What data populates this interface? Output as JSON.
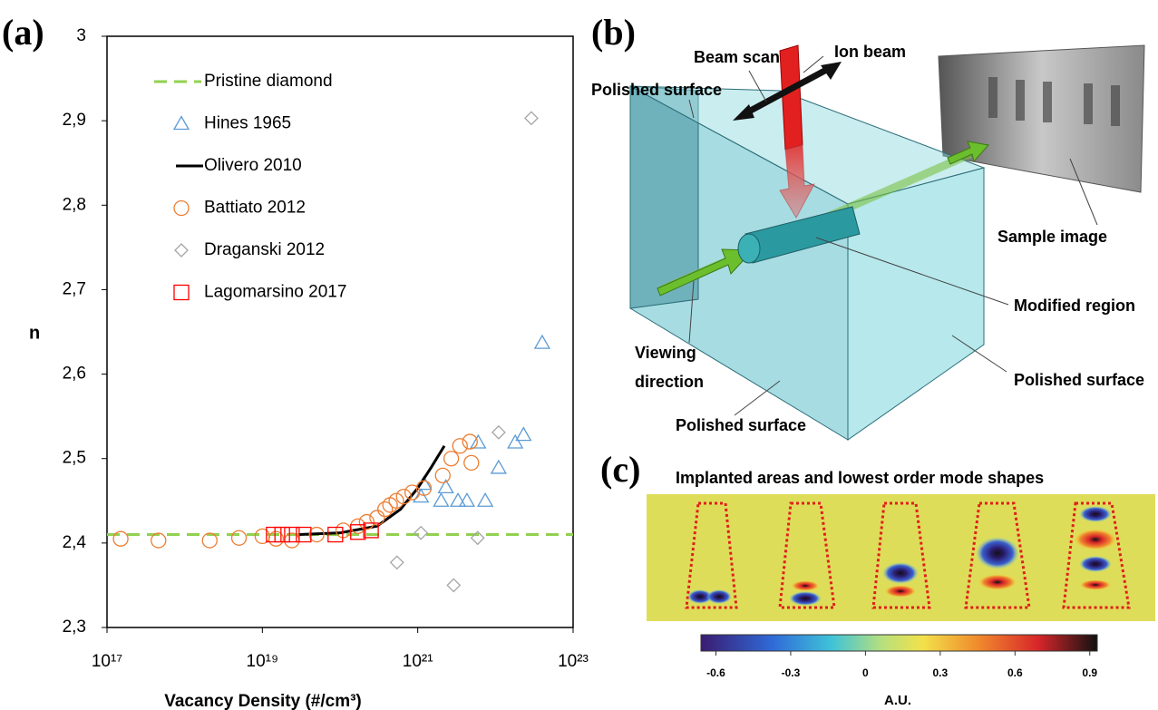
{
  "chart_data": {
    "type": "scatter",
    "panel_label": "(a)",
    "x_label": "Vacancy Density (#/cm³)",
    "y_label": "n",
    "xscale": "log",
    "xlim": [
      1e+17,
      1e+23
    ],
    "xticks": [
      {
        "value": 1e+17,
        "label": "10¹⁷"
      },
      {
        "value": 1e+19,
        "label": "10¹⁹"
      },
      {
        "value": 1e+21,
        "label": "10²¹"
      },
      {
        "value": 1e+23,
        "label": "10²³"
      }
    ],
    "ylim": [
      2.3,
      3
    ],
    "yticks": [
      {
        "value": 2.3,
        "label": "2,3"
      },
      {
        "value": 2.4,
        "label": "2,4"
      },
      {
        "value": 2.5,
        "label": "2,5"
      },
      {
        "value": 2.6,
        "label": "2,6"
      },
      {
        "value": 2.7,
        "label": "2,7"
      },
      {
        "value": 2.8,
        "label": "2,8"
      },
      {
        "value": 2.9,
        "label": "2,9"
      },
      3
    ],
    "legend": "upper left",
    "series": [
      {
        "name": "Pristine diamond",
        "color": "#92d050",
        "kind": "hline",
        "value": 2.41
      },
      {
        "name": "Hines 1965",
        "color": "#5b9bd5",
        "kind": "triangle",
        "x": [
          4e+22,
          2.3e+22,
          1.8e+22,
          1.1e+22,
          6e+21,
          1.2e+21,
          1.1e+21,
          2e+21,
          3.3e+21,
          4.3e+21,
          7.4e+21,
          2.3e+21
        ],
        "values": [
          2.637,
          2.528,
          2.519,
          2.489,
          2.519,
          2.47,
          2.455,
          2.45,
          2.45,
          2.45,
          2.45,
          2.466
        ]
      },
      {
        "name": "Olivero 2010",
        "color": "#000000",
        "kind": "line",
        "x": [
          3e+19,
          1e+20,
          3e+20,
          6e+20,
          1e+21,
          1.5e+21,
          2.2e+21
        ],
        "values": [
          2.41,
          2.412,
          2.42,
          2.44,
          2.465,
          2.49,
          2.515
        ]
      },
      {
        "name": "Battiato 2012",
        "color": "#ed7d31",
        "kind": "circle",
        "x": [
          1.5e+17,
          4.6e+17,
          2.1e+18,
          5e+18,
          1e+19,
          1.5e+19,
          2.4e+19,
          5e+19,
          1.1e+20,
          1.7e+20,
          2.2e+20,
          3e+20,
          3.8e+20,
          4.4e+20,
          5.3e+20,
          6.6e+20,
          8.5e+20,
          1.2e+21,
          2.1e+21,
          2.7e+21,
          3.5e+21,
          4.7e+21,
          4.9e+21
        ],
        "values": [
          2.405,
          2.403,
          2.403,
          2.406,
          2.408,
          2.405,
          2.403,
          2.41,
          2.415,
          2.42,
          2.425,
          2.43,
          2.44,
          2.445,
          2.45,
          2.455,
          2.46,
          2.465,
          2.48,
          2.5,
          2.515,
          2.52,
          2.495
        ]
      },
      {
        "name": "Draganski 2012",
        "color": "#a5a5a5",
        "kind": "diamond",
        "x": [
          2.9e+22,
          1.1e+22,
          5.4e+20,
          2.9e+21,
          1.1e+21,
          5.9e+21
        ],
        "values": [
          2.903,
          2.531,
          2.377,
          2.35,
          2.412,
          2.406
        ]
      },
      {
        "name": "Lagomarsino 2017",
        "color": "#ff0000",
        "kind": "square",
        "x": [
          1.4e+19,
          1.8e+19,
          2.4e+19,
          3.4e+19,
          8.7e+19,
          1.7e+20,
          2.5e+20
        ],
        "values": [
          2.41,
          2.41,
          2.41,
          2.41,
          2.41,
          2.413,
          2.415
        ]
      }
    ]
  },
  "panel_b": {
    "panel_label": "(b)",
    "beam_scan": "Beam scan",
    "ion_beam": "Ion beam",
    "polished_surface_top": "Polished surface",
    "sample_image": "Sample image",
    "modified_region": "Modified region",
    "viewing_direction": [
      "Viewing",
      "direction"
    ],
    "polished_surface_right": "Polished surface",
    "polished_surface_bottom": "Polished surface"
  },
  "panel_c": {
    "panel_label": "(c)",
    "title": "Implanted areas and lowest order mode shapes",
    "colorbar": {
      "label": "A.U.",
      "lim": [
        -0.66,
        0.93
      ],
      "ticks": [
        -0.6,
        -0.3,
        0,
        0.3,
        0.6,
        0.9
      ]
    }
  }
}
